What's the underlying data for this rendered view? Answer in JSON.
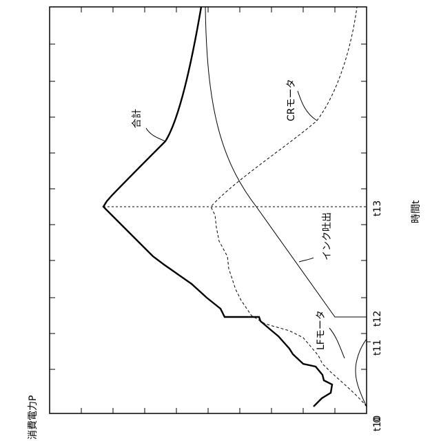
{
  "chart_data": {
    "type": "line",
    "orientation": "rotated 90° counter-clockwise (time runs bottom to top)",
    "ylabel": "消費電力P",
    "xlabel": "時間t",
    "origin_label": "0",
    "x_ticks": [
      "t10",
      "t11",
      "t12",
      "t13"
    ],
    "x_tick_values": [
      0,
      0.165,
      0.42,
      0.8
    ],
    "x_range": [
      0,
      1.7
    ],
    "y_range": [
      0,
      1
    ],
    "grid": false,
    "series_labels": {
      "total": "合計",
      "cr_motor": "CRモータ",
      "ink_ejection": "インク吐出",
      "lf_motor": "LFモータ"
    },
    "annotation": "vertical dashed reference line at t13"
  }
}
